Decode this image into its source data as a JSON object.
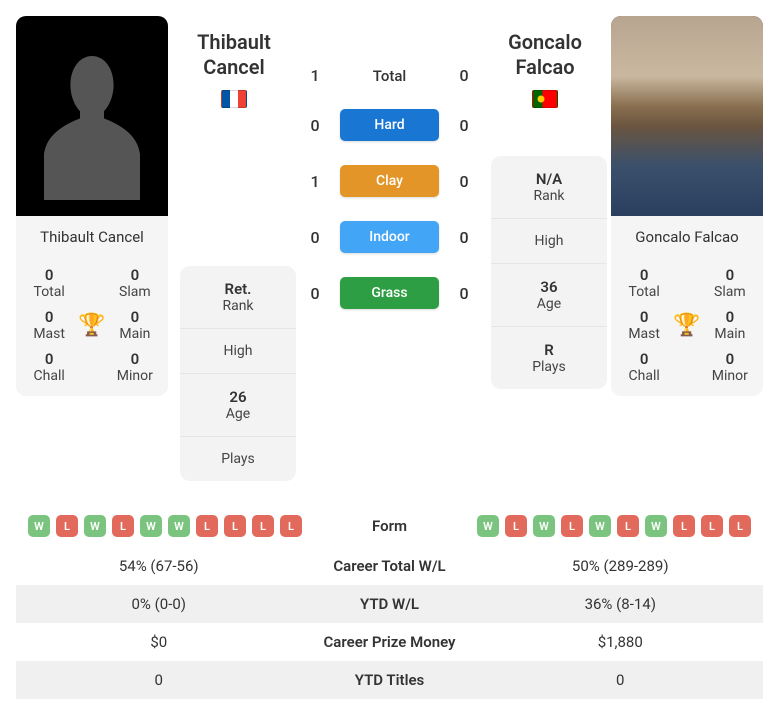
{
  "player1": {
    "name": "Thibault Cancel",
    "first_name": "Thibault",
    "last_name": "Cancel",
    "flag": "fr",
    "photo_type": "silhouette",
    "titles": {
      "total": {
        "val": "0",
        "lbl": "Total"
      },
      "slam": {
        "val": "0",
        "lbl": "Slam"
      },
      "mast": {
        "val": "0",
        "lbl": "Mast"
      },
      "main": {
        "val": "0",
        "lbl": "Main"
      },
      "chall": {
        "val": "0",
        "lbl": "Chall"
      },
      "minor": {
        "val": "0",
        "lbl": "Minor"
      }
    },
    "attrs": {
      "rank": {
        "val": "Ret.",
        "lbl": "Rank"
      },
      "high": {
        "val": "",
        "lbl": "High"
      },
      "age": {
        "val": "26",
        "lbl": "Age"
      },
      "plays": {
        "val": "",
        "lbl": "Plays"
      }
    }
  },
  "player2": {
    "name": "Goncalo Falcao",
    "first_name": "Goncalo",
    "last_name": "Falcao",
    "flag": "pt",
    "photo_type": "image",
    "titles": {
      "total": {
        "val": "0",
        "lbl": "Total"
      },
      "slam": {
        "val": "0",
        "lbl": "Slam"
      },
      "mast": {
        "val": "0",
        "lbl": "Mast"
      },
      "main": {
        "val": "0",
        "lbl": "Main"
      },
      "chall": {
        "val": "0",
        "lbl": "Chall"
      },
      "minor": {
        "val": "0",
        "lbl": "Minor"
      }
    },
    "attrs": {
      "rank": {
        "val": "N/A",
        "lbl": "Rank"
      },
      "high": {
        "val": "",
        "lbl": "High"
      },
      "age": {
        "val": "36",
        "lbl": "Age"
      },
      "plays": {
        "val": "R",
        "lbl": "Plays"
      }
    }
  },
  "h2h": {
    "total": {
      "p1": "1",
      "label": "Total",
      "p2": "0"
    },
    "hard": {
      "p1": "0",
      "label": "Hard",
      "p2": "0",
      "color": "#1976d2"
    },
    "clay": {
      "p1": "1",
      "label": "Clay",
      "p2": "0",
      "color": "#e39627"
    },
    "indoor": {
      "p1": "0",
      "label": "Indoor",
      "p2": "0",
      "color": "#42a5f5"
    },
    "grass": {
      "p1": "0",
      "label": "Grass",
      "p2": "0",
      "color": "#2e9e44"
    }
  },
  "form": {
    "label": "Form",
    "p1": [
      "W",
      "L",
      "W",
      "L",
      "W",
      "W",
      "L",
      "L",
      "L",
      "L"
    ],
    "p2": [
      "W",
      "L",
      "W",
      "L",
      "W",
      "L",
      "W",
      "L",
      "L",
      "L"
    ],
    "w_color": "#7bc47f",
    "l_color": "#e26a5c"
  },
  "career_rows": [
    {
      "p1": "54% (67-56)",
      "label": "Career Total W/L",
      "p2": "50% (289-289)"
    },
    {
      "p1": "0% (0-0)",
      "label": "YTD W/L",
      "p2": "36% (8-14)"
    },
    {
      "p1": "$0",
      "label": "Career Prize Money",
      "p2": "$1,880"
    },
    {
      "p1": "0",
      "label": "YTD Titles",
      "p2": "0"
    }
  ]
}
